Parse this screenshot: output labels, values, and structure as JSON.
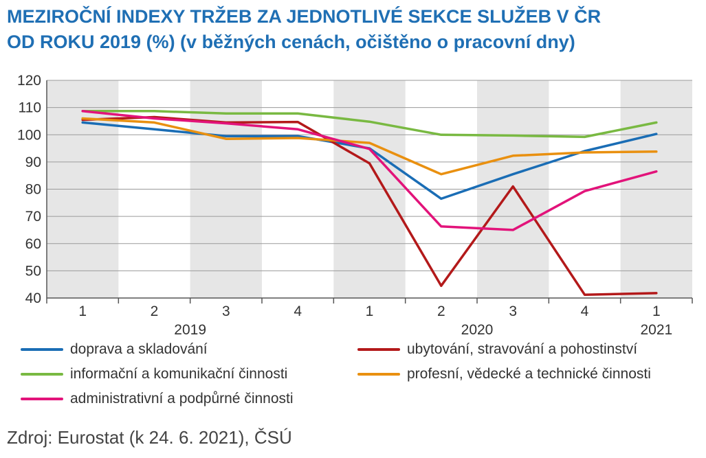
{
  "header": {
    "title_line1": "MEZIROČNÍ INDEXY TRŽEB ZA JEDNOTLIVÉ SEKCE SLUŽEB V ČR",
    "title_line2": "OD ROKU 2019 (%) (v běžných cenách, očištěno o pracovní dny)"
  },
  "source": "Zdroj: Eurostat (k 24. 6. 2021), ČSÚ",
  "chart_data": {
    "type": "line",
    "title": "MEZIROČNÍ INDEXY TRŽEB ZA JEDNOTLIVÉ SEKCE SLUŽEB V ČR OD ROKU 2019 (%) (v běžných cenách, očištěno o pracovní dny)",
    "categories": [
      "1",
      "2",
      "3",
      "4",
      "1",
      "2",
      "3",
      "4",
      "1"
    ],
    "category_groups": [
      {
        "label": "2019",
        "start": 0,
        "end": 3
      },
      {
        "label": "2020",
        "start": 4,
        "end": 7
      },
      {
        "label": "2021",
        "start": 8,
        "end": 8
      }
    ],
    "ylim": [
      40,
      120
    ],
    "yticks": [
      40,
      50,
      60,
      70,
      80,
      90,
      100,
      110,
      120
    ],
    "grid": true,
    "shaded_columns": [
      0,
      2,
      4,
      6,
      8
    ],
    "series": [
      {
        "name": "doprava a skladování",
        "color": "#1a6db5",
        "values": [
          104.5,
          102.0,
          99.5,
          99.5,
          95.0,
          76.5,
          85.5,
          94.0,
          100.3
        ]
      },
      {
        "name": "ubytování, stravování a pohostinství",
        "color": "#b3191a",
        "values": [
          105.5,
          106.5,
          104.5,
          104.7,
          89.5,
          44.5,
          81.0,
          41.2,
          41.8
        ]
      },
      {
        "name": "informační a komunikační činnosti",
        "color": "#79b942",
        "values": [
          108.7,
          108.7,
          107.8,
          107.8,
          104.8,
          100.0,
          99.7,
          99.2,
          104.5
        ]
      },
      {
        "name": "profesní, vědecké a technické činnosti",
        "color": "#e99010",
        "values": [
          106.0,
          104.5,
          98.5,
          98.8,
          97.0,
          85.5,
          92.3,
          93.5,
          93.8
        ]
      },
      {
        "name": "administrativní a podpůrné činnosti",
        "color": "#e2137a",
        "values": [
          108.7,
          106.0,
          104.2,
          102.0,
          94.8,
          66.3,
          65.0,
          79.3,
          86.5
        ]
      }
    ]
  }
}
